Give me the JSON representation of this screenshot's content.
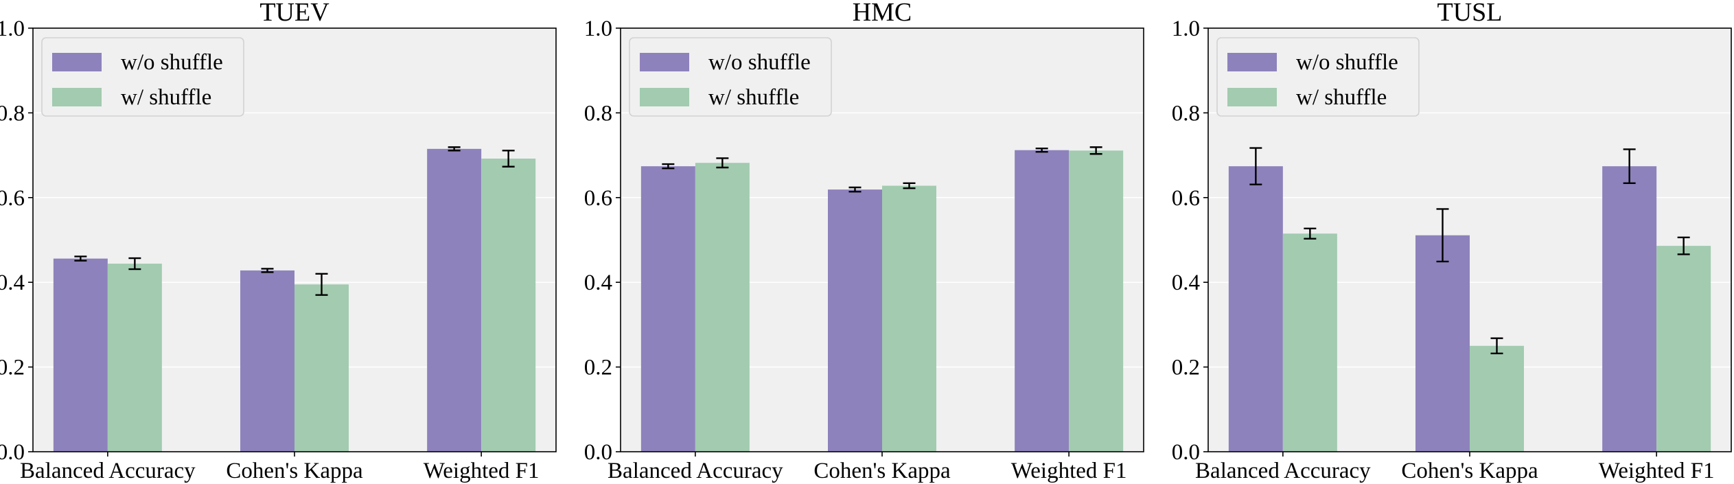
{
  "colors": {
    "without_shuffle": "#8e82bc",
    "with_shuffle": "#a2cbb0",
    "plot_background": "#f0f0f0",
    "grid": "#ffffff",
    "axis": "#000000",
    "legend_border": "#d2d2d2",
    "legend_background": "#f0f0f0"
  },
  "chart_data": [
    {
      "type": "bar",
      "title": "TUEV",
      "categories": [
        "Balanced Accuracy",
        "Cohen's Kappa",
        "Weighted F1"
      ],
      "ylim": [
        0,
        1.0
      ],
      "yticks": [
        "0.0",
        "0.2",
        "0.4",
        "0.6",
        "0.8",
        "1.0"
      ],
      "grid": true,
      "legend_position": "top-left",
      "series": [
        {
          "name": "w/o shuffle",
          "values": [
            0.456,
            0.428,
            0.715
          ],
          "errors": [
            0.005,
            0.004,
            0.004
          ]
        },
        {
          "name": "w/ shuffle",
          "values": [
            0.444,
            0.395,
            0.692
          ],
          "errors": [
            0.013,
            0.025,
            0.019
          ]
        }
      ]
    },
    {
      "type": "bar",
      "title": "HMC",
      "categories": [
        "Balanced Accuracy",
        "Cohen's Kappa",
        "Weighted F1"
      ],
      "ylim": [
        0,
        1.0
      ],
      "yticks": [
        "0.0",
        "0.2",
        "0.4",
        "0.6",
        "0.8",
        "1.0"
      ],
      "grid": true,
      "legend_position": "top-left",
      "series": [
        {
          "name": "w/o shuffle",
          "values": [
            0.674,
            0.619,
            0.712
          ],
          "errors": [
            0.005,
            0.005,
            0.004
          ]
        },
        {
          "name": "w/ shuffle",
          "values": [
            0.682,
            0.628,
            0.711
          ],
          "errors": [
            0.011,
            0.006,
            0.008
          ]
        }
      ]
    },
    {
      "type": "bar",
      "title": "TUSL",
      "categories": [
        "Balanced Accuracy",
        "Cohen's Kappa",
        "Weighted F1"
      ],
      "ylim": [
        0,
        1.0
      ],
      "yticks": [
        "0.0",
        "0.2",
        "0.4",
        "0.6",
        "0.8",
        "1.0"
      ],
      "grid": true,
      "legend_position": "top-left",
      "series": [
        {
          "name": "w/o shuffle",
          "values": [
            0.674,
            0.511,
            0.674
          ],
          "errors": [
            0.043,
            0.062,
            0.04
          ]
        },
        {
          "name": "w/ shuffle",
          "values": [
            0.515,
            0.25,
            0.486
          ],
          "errors": [
            0.012,
            0.018,
            0.02
          ]
        }
      ]
    }
  ]
}
